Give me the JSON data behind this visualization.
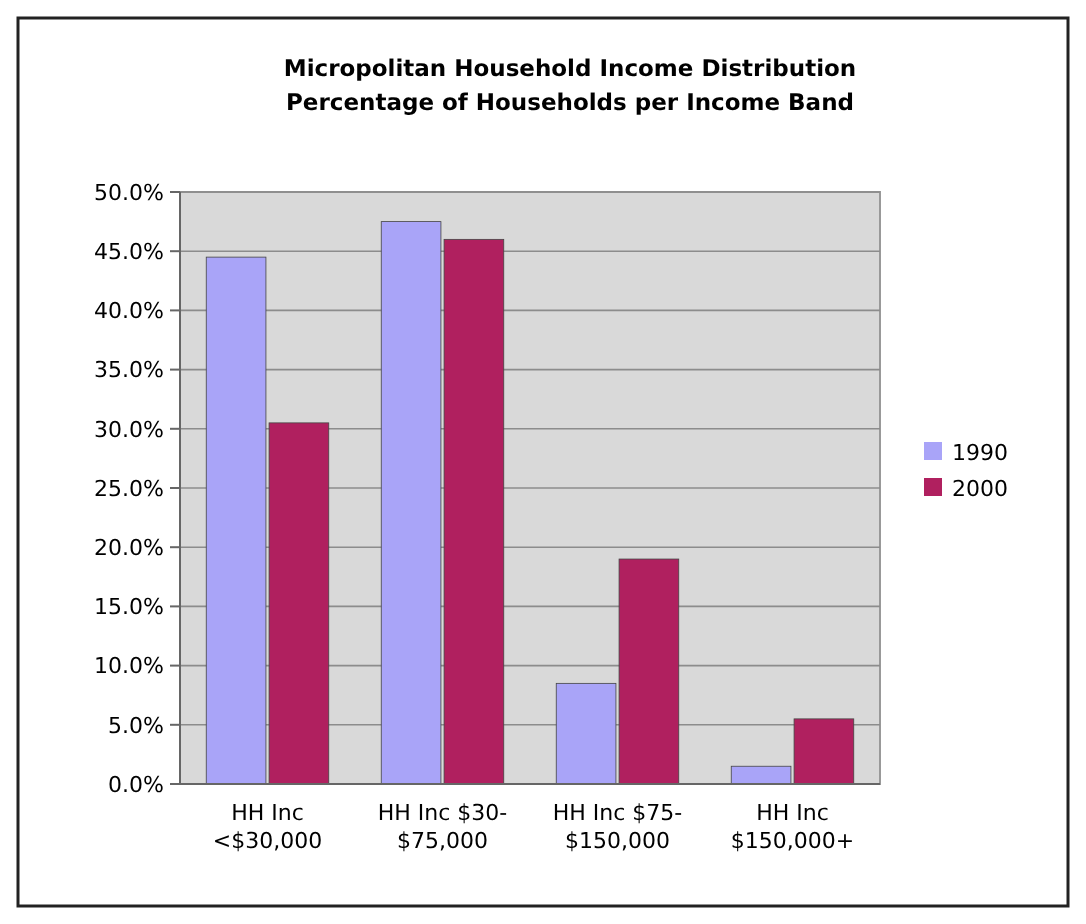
{
  "chart_data": {
    "type": "bar",
    "title": "Micropolitan Household Income Distribution\nPercentage of Households per Income Band",
    "categories": [
      "HH Inc\n<$30,000",
      "HH Inc $30-\n$75,000",
      "HH Inc $75-\n$150,000",
      "HH Inc\n$150,000+"
    ],
    "series": [
      {
        "name": "1990",
        "color": "#a9a4f8",
        "values": [
          44.5,
          47.5,
          8.5,
          1.5
        ]
      },
      {
        "name": "2000",
        "color": "#b0205f",
        "values": [
          30.5,
          46,
          19,
          5.5
        ]
      }
    ],
    "ylim": [
      0,
      50
    ],
    "yticks": [
      {
        "value": 0,
        "label": "0.0%"
      },
      {
        "value": 5,
        "label": "5.0%"
      },
      {
        "value": 10,
        "label": "10.0%"
      },
      {
        "value": 15,
        "label": "15.0%"
      },
      {
        "value": 20,
        "label": "20.0%"
      },
      {
        "value": 25,
        "label": "25.0%"
      },
      {
        "value": 30,
        "label": "30.0%"
      },
      {
        "value": 35,
        "label": "35.0%"
      },
      {
        "value": 40,
        "label": "40.0%"
      },
      {
        "value": 45,
        "label": "45.0%"
      },
      {
        "value": 50,
        "label": "50.0%"
      }
    ],
    "grid": "y",
    "legend": "right"
  }
}
